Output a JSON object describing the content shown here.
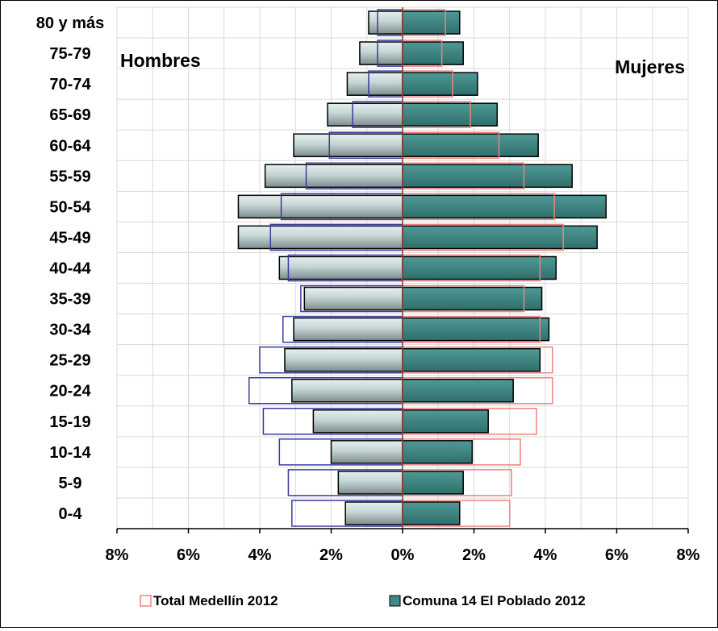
{
  "chart_data": {
    "type": "bar",
    "orientation": "horizontal",
    "subtype": "population-pyramid",
    "categories": [
      "0-4",
      "5-9",
      "10-14",
      "15-19",
      "20-24",
      "25-29",
      "30-34",
      "35-39",
      "40-44",
      "45-49",
      "50-54",
      "55-59",
      "60-64",
      "65-69",
      "70-74",
      "75-79",
      "80 y más"
    ],
    "side_labels": {
      "left": "Hombres",
      "right": "Mujeres"
    },
    "series": [
      {
        "name": "Comuna 14 El Poblado 2012",
        "style": "filled bars",
        "colors": {
          "men": "#c9d9d9",
          "women": "#3f8a86"
        },
        "men": [
          1.6,
          1.8,
          2.0,
          2.5,
          3.1,
          3.3,
          3.05,
          2.75,
          3.45,
          4.6,
          4.6,
          3.85,
          3.05,
          2.1,
          1.55,
          1.2,
          0.95
        ],
        "women": [
          1.6,
          1.7,
          1.95,
          2.4,
          3.1,
          3.85,
          4.1,
          3.9,
          4.3,
          5.45,
          5.7,
          4.75,
          3.8,
          2.65,
          2.1,
          1.7,
          1.6
        ]
      },
      {
        "name": "Total Medellín 2012",
        "style": "outline bars",
        "colors": {
          "men": "#3a3a9e",
          "women": "#f08080"
        },
        "men": [
          3.1,
          3.2,
          3.45,
          3.9,
          4.3,
          4.0,
          3.35,
          2.85,
          3.2,
          3.7,
          3.4,
          2.7,
          2.05,
          1.4,
          0.95,
          0.7,
          0.7
        ],
        "women": [
          3.0,
          3.05,
          3.3,
          3.75,
          4.2,
          4.2,
          3.85,
          3.4,
          3.85,
          4.5,
          4.25,
          3.4,
          2.7,
          1.9,
          1.4,
          1.1,
          1.2
        ]
      }
    ],
    "xaxis": {
      "ticks": [
        -8,
        -6,
        -4,
        -2,
        0,
        2,
        4,
        6,
        8
      ],
      "tick_labels": [
        "8%",
        "6%",
        "4%",
        "2%",
        "0%",
        "2%",
        "4%",
        "6%",
        "8%"
      ],
      "range": [
        -8,
        8
      ]
    },
    "grid": true,
    "legend": {
      "position": "bottom",
      "entries": [
        "Total Medellín 2012",
        "Comuna 14 El Poblado 2012"
      ]
    }
  }
}
